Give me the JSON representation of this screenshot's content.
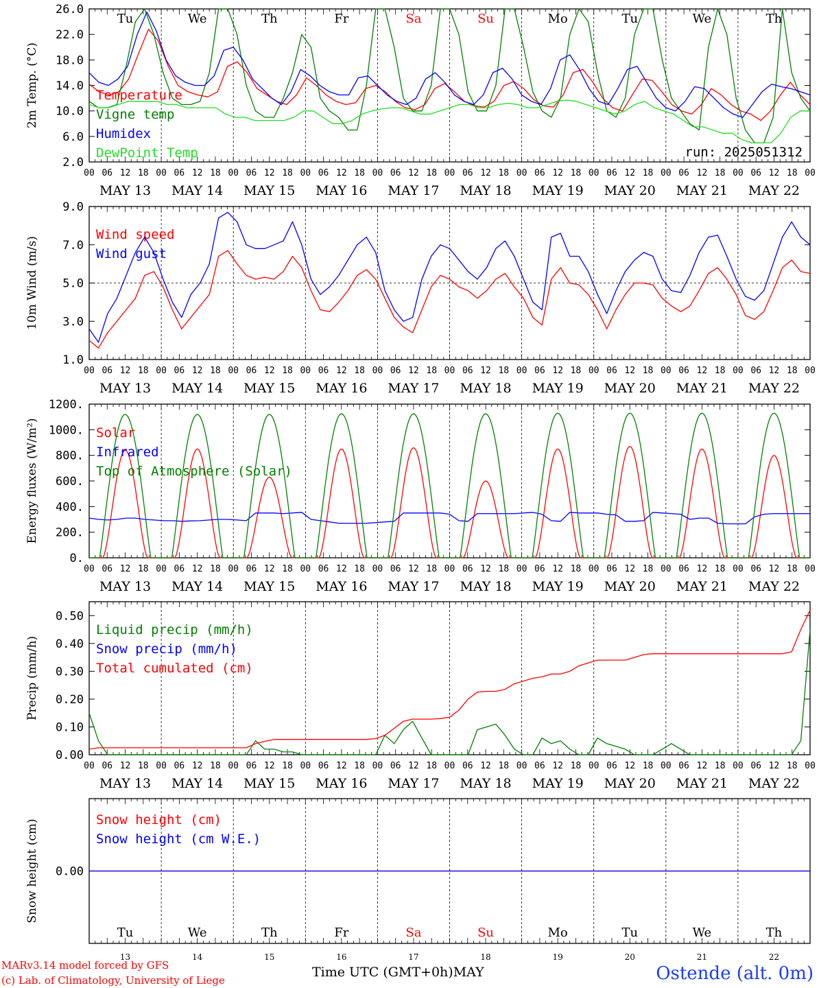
{
  "colors": {
    "red": "#ff0000",
    "green": "#008000",
    "blue": "#0000ff",
    "lightgreen": "#22dd22",
    "black": "#000000"
  },
  "day_names": [
    "Tu",
    "We",
    "Th",
    "Fr",
    "Sa",
    "Su",
    "Mo",
    "Tu",
    "We",
    "Th"
  ],
  "weekend_days": [
    4,
    5
  ],
  "date_labels": [
    "MAY 13",
    "MAY 14",
    "MAY 15",
    "MAY 16",
    "MAY 17",
    "MAY 18",
    "MAY 19",
    "MAY 20",
    "MAY 21",
    "MAY 22"
  ],
  "hour_labels": [
    "00",
    "06",
    "12",
    "18"
  ],
  "hour_last": "00",
  "bottom_day_numbers": [
    "13",
    "14",
    "15",
    "16",
    "17",
    "18",
    "19",
    "20",
    "21",
    "22"
  ],
  "footer": {
    "model": "MARv3.14 model forced by GFS",
    "lab": "(c) Lab. of Climatology, University of Liege",
    "time_label": "Time UTC (GMT+0h)",
    "month": "MAY",
    "station": "Ostende (alt. 0m)"
  },
  "chart_data": [
    {
      "type": "line",
      "ylabel": "2m Temp. (°C)",
      "ylim": [
        2,
        26
      ],
      "ytick_labels": [
        "2.0",
        "6.0",
        "10.0",
        "14.0",
        "18.0",
        "22.0",
        "26.0"
      ],
      "run_label": "run: 2025051312",
      "x_hours_step": 6,
      "series": [
        {
          "name": "Temperature",
          "color": "red",
          "values": [
            14.2,
            13,
            12.5,
            13,
            15,
            19,
            22.8,
            21,
            17,
            14,
            13,
            12.5,
            12.2,
            13,
            17,
            17.7,
            16,
            13.5,
            12.5,
            11.5,
            11,
            12.5,
            15.2,
            14,
            12.5,
            11.5,
            11,
            11.3,
            13.5,
            14,
            13,
            11.5,
            10.5,
            10.2,
            11,
            13.5,
            14.3,
            13,
            11.5,
            10.8,
            10.6,
            11.5,
            14,
            14.6,
            13.5,
            11.8,
            10.8,
            10.6,
            12.5,
            16,
            16.5,
            14.5,
            12,
            10.5,
            10,
            12.5,
            15,
            14.8,
            13,
            11,
            10,
            9.5,
            11,
            13.5,
            12.5,
            11,
            10,
            9.5,
            8.5,
            10,
            12.5,
            14.5,
            12.5,
            11
          ]
        },
        {
          "name": "Vigne temp",
          "color": "green",
          "values": [
            11.5,
            10.5,
            10.5,
            11,
            17,
            24,
            26,
            22,
            16,
            12,
            11,
            11,
            11.5,
            16,
            26,
            26,
            22,
            14,
            10,
            9,
            9,
            12,
            16,
            22,
            20,
            12,
            10,
            9,
            7,
            7,
            14,
            26,
            26,
            20,
            12,
            10,
            10,
            14,
            26,
            26,
            22,
            13,
            10,
            10,
            14,
            26,
            26,
            20,
            13,
            10,
            9,
            12,
            22,
            26,
            24,
            16,
            10,
            9,
            12,
            22,
            26,
            26,
            18,
            12,
            10,
            8,
            7,
            20,
            26,
            22,
            12,
            7,
            5,
            5,
            9,
            26,
            16,
            12,
            10
          ]
        },
        {
          "name": "Humidex",
          "color": "blue",
          "values": [
            16,
            14.5,
            14,
            15,
            17,
            22,
            25.5,
            22.5,
            18,
            15.5,
            14.5,
            14,
            14,
            15.5,
            19.5,
            20,
            18,
            15,
            13.5,
            12,
            11,
            13,
            16.5,
            15.5,
            14,
            13,
            12.5,
            12.5,
            15.2,
            15.5,
            14,
            12.5,
            11.5,
            11,
            12,
            15,
            16,
            14.5,
            12.5,
            11.5,
            11,
            12.5,
            16,
            16.7,
            15,
            12.5,
            11.5,
            11,
            13.5,
            18,
            18.8,
            16.5,
            13.5,
            11.5,
            11,
            13.5,
            16.5,
            17,
            14.5,
            12,
            10.5,
            10,
            11.5,
            13.8,
            13.5,
            12,
            10.5,
            9.5,
            9,
            11,
            13,
            14.2,
            13.8,
            13.5,
            13,
            12.5
          ]
        },
        {
          "name": "DewPoint Temp",
          "color": "lightgreen",
          "values": [
            11,
            10.5,
            10.5,
            11,
            11.5,
            11.5,
            11.5,
            11.5,
            11,
            11,
            10.5,
            10.5,
            10.5,
            10.5,
            9.5,
            9,
            9,
            8.5,
            8.5,
            8.5,
            8.5,
            9,
            10,
            10,
            9,
            8,
            8,
            8.5,
            9.5,
            10,
            10.3,
            10.5,
            10.5,
            10,
            9.5,
            9.5,
            10,
            10.5,
            11,
            11,
            10.5,
            10.5,
            11,
            11.2,
            11,
            10.5,
            10.5,
            11,
            11.5,
            11.7,
            11.5,
            11,
            10.5,
            10,
            9.5,
            10,
            11,
            11.5,
            10.5,
            10,
            9.5,
            8.5,
            7.5,
            7.5,
            7,
            6.5,
            6.5,
            5.5,
            5,
            5,
            5,
            6.5,
            9,
            10,
            10
          ]
        }
      ],
      "legend_placement": "left"
    },
    {
      "type": "line",
      "ylabel": "10m Wind (m/s)",
      "ylim": [
        1,
        9
      ],
      "ytick_labels": [
        "1.0",
        "3.0",
        "5.0",
        "7.0",
        "9.0"
      ],
      "reference_line": 5,
      "x_hours_step": 6,
      "series": [
        {
          "name": "Wind speed",
          "color": "red",
          "values": [
            2,
            1.6,
            2.4,
            3,
            3.6,
            4.2,
            5.4,
            5.6,
            4.8,
            3.6,
            2.6,
            3.2,
            3.8,
            4.4,
            6.4,
            6.7,
            6,
            5.4,
            5.2,
            5.3,
            5.2,
            5.6,
            6.4,
            5.8,
            4.6,
            3.6,
            3.5,
            4,
            4.6,
            5.4,
            5.7,
            5.2,
            4.2,
            3.2,
            2.7,
            2.4,
            3.6,
            4.8,
            5.4,
            5.2,
            4.8,
            4.6,
            4.2,
            4.6,
            5.2,
            5.5,
            4.8,
            4.2,
            3.2,
            2.8,
            5.2,
            5.8,
            5,
            4.9,
            4.4,
            3.6,
            2.6,
            3.6,
            4.4,
            5,
            5,
            4.9,
            4.2,
            3.8,
            3.5,
            3.8,
            4.6,
            5.5,
            5.8,
            5.2,
            4.4,
            3.3,
            3.1,
            3.5,
            4.6,
            5.8,
            6.2,
            5.6,
            5.5
          ]
        },
        {
          "name": "Wind gust",
          "color": "blue",
          "values": [
            2.6,
            1.9,
            3.4,
            4.2,
            5.4,
            6.6,
            7.4,
            6.6,
            5.2,
            4,
            3.2,
            4.4,
            5,
            6,
            8.4,
            8.7,
            8.2,
            7,
            6.8,
            6.8,
            7,
            7.2,
            8.2,
            7,
            5.2,
            4.4,
            4.8,
            5.4,
            6.2,
            7,
            7.4,
            6.6,
            4.6,
            3.6,
            3,
            3.2,
            5.2,
            6.4,
            7,
            6.8,
            6.2,
            5.6,
            5.2,
            5.8,
            6.8,
            7.2,
            6.4,
            5.2,
            4,
            3.6,
            7.4,
            7.6,
            6.4,
            6.4,
            5.6,
            4.4,
            3.4,
            4.6,
            5.6,
            6.2,
            6.6,
            6.4,
            5.2,
            4.6,
            4.5,
            5.4,
            6.6,
            7.4,
            7.5,
            6.4,
            5.2,
            4.3,
            4.1,
            4.6,
            6,
            7.4,
            8.2,
            7.4,
            7
          ]
        }
      ],
      "legend_placement": "left"
    },
    {
      "type": "line",
      "ylabel": "Energy fluxes (W/m²)",
      "ylim": [
        0,
        1200
      ],
      "ytick_labels": [
        "0.",
        "200.",
        "400.",
        "600.",
        "800.",
        "1000.",
        "1200."
      ],
      "x_hours_step": 6,
      "series": [
        {
          "name": "Solar",
          "color": "red",
          "day_peaks": [
            840,
            850,
            630,
            850,
            860,
            600,
            850,
            870,
            850,
            800
          ]
        },
        {
          "name": "Infrared",
          "color": "blue",
          "values": [
            310,
            300,
            295,
            300,
            310,
            310,
            300,
            295,
            290,
            290,
            285,
            288,
            290,
            295,
            300,
            300,
            295,
            290,
            350,
            350,
            350,
            345,
            350,
            355,
            300,
            290,
            280,
            270,
            270,
            270,
            270,
            275,
            280,
            285,
            350,
            350,
            350,
            350,
            350,
            340,
            290,
            285,
            345,
            345,
            345,
            345,
            345,
            350,
            355,
            340,
            290,
            285,
            355,
            350,
            350,
            350,
            340,
            335,
            285,
            285,
            290,
            355,
            350,
            345,
            340,
            300,
            310,
            310,
            270,
            265,
            265,
            265,
            320,
            340,
            345,
            345,
            345,
            345,
            345
          ]
        },
        {
          "name": "Top of Atmosphere (Solar)",
          "color": "green",
          "day_peaks": [
            1120,
            1120,
            1120,
            1125,
            1125,
            1125,
            1130,
            1130,
            1130,
            1130
          ]
        }
      ],
      "legend_placement": "left"
    },
    {
      "type": "line",
      "ylabel": "Precip (mm/h)",
      "ylim": [
        0,
        0.55
      ],
      "ytick_labels": [
        "0.00",
        "0.10",
        "0.20",
        "0.30",
        "0.40",
        "0.50"
      ],
      "x_hours_step": 6,
      "series": [
        {
          "name": "Liquid precip (mm/h)",
          "color": "green",
          "values": [
            0.15,
            0.05,
            0,
            0,
            0,
            0,
            0,
            0,
            0,
            0,
            0,
            0,
            0,
            0,
            0,
            0,
            0,
            0,
            0.05,
            0.02,
            0.02,
            0.01,
            0.01,
            0,
            0,
            0,
            0,
            0,
            0,
            0,
            0,
            0,
            0.07,
            0.04,
            0.09,
            0.12,
            0.06,
            0,
            0,
            0,
            0,
            0,
            0.09,
            0.1,
            0.11,
            0.07,
            0.02,
            0,
            0,
            0.06,
            0.04,
            0.05,
            0.02,
            0,
            0,
            0.06,
            0.04,
            0.03,
            0.02,
            0,
            0,
            0,
            0.02,
            0.04,
            0.02,
            0,
            0,
            0,
            0,
            0,
            0,
            0,
            0,
            0,
            0,
            0,
            0,
            0.05,
            0.45
          ]
        },
        {
          "name": "Snow precip (mm/h)",
          "color": "blue",
          "values": []
        },
        {
          "name": "Total cumulated (cm)",
          "color": "red",
          "values": [
            0.02,
            0.025,
            0.025,
            0.025,
            0.025,
            0.025,
            0.025,
            0.025,
            0.025,
            0.025,
            0.025,
            0.025,
            0.025,
            0.025,
            0.025,
            0.025,
            0.025,
            0.025,
            0.04,
            0.048,
            0.055,
            0.055,
            0.055,
            0.055,
            0.055,
            0.055,
            0.055,
            0.055,
            0.055,
            0.055,
            0.055,
            0.058,
            0.07,
            0.095,
            0.12,
            0.128,
            0.128,
            0.128,
            0.13,
            0.135,
            0.16,
            0.2,
            0.225,
            0.228,
            0.228,
            0.235,
            0.255,
            0.265,
            0.275,
            0.28,
            0.29,
            0.29,
            0.3,
            0.32,
            0.33,
            0.34,
            0.34,
            0.34,
            0.34,
            0.35,
            0.36,
            0.363,
            0.363,
            0.363,
            0.363,
            0.363,
            0.363,
            0.363,
            0.363,
            0.363,
            0.363,
            0.363,
            0.363,
            0.363,
            0.363,
            0.363,
            0.37,
            0.45,
            0.52
          ]
        }
      ],
      "legend_placement": "left"
    },
    {
      "type": "line",
      "ylabel": "Snow height (cm)",
      "ylim": [
        -1,
        1
      ],
      "ytick_labels": [
        "0.00"
      ],
      "x_hours_step": 6,
      "series": [
        {
          "name": "Snow height (cm)",
          "color": "red",
          "values": [
            0,
            0
          ]
        },
        {
          "name": "Snow height (cm W.E.)",
          "color": "blue",
          "values": [
            0,
            0
          ]
        }
      ],
      "legend_placement": "left"
    }
  ]
}
